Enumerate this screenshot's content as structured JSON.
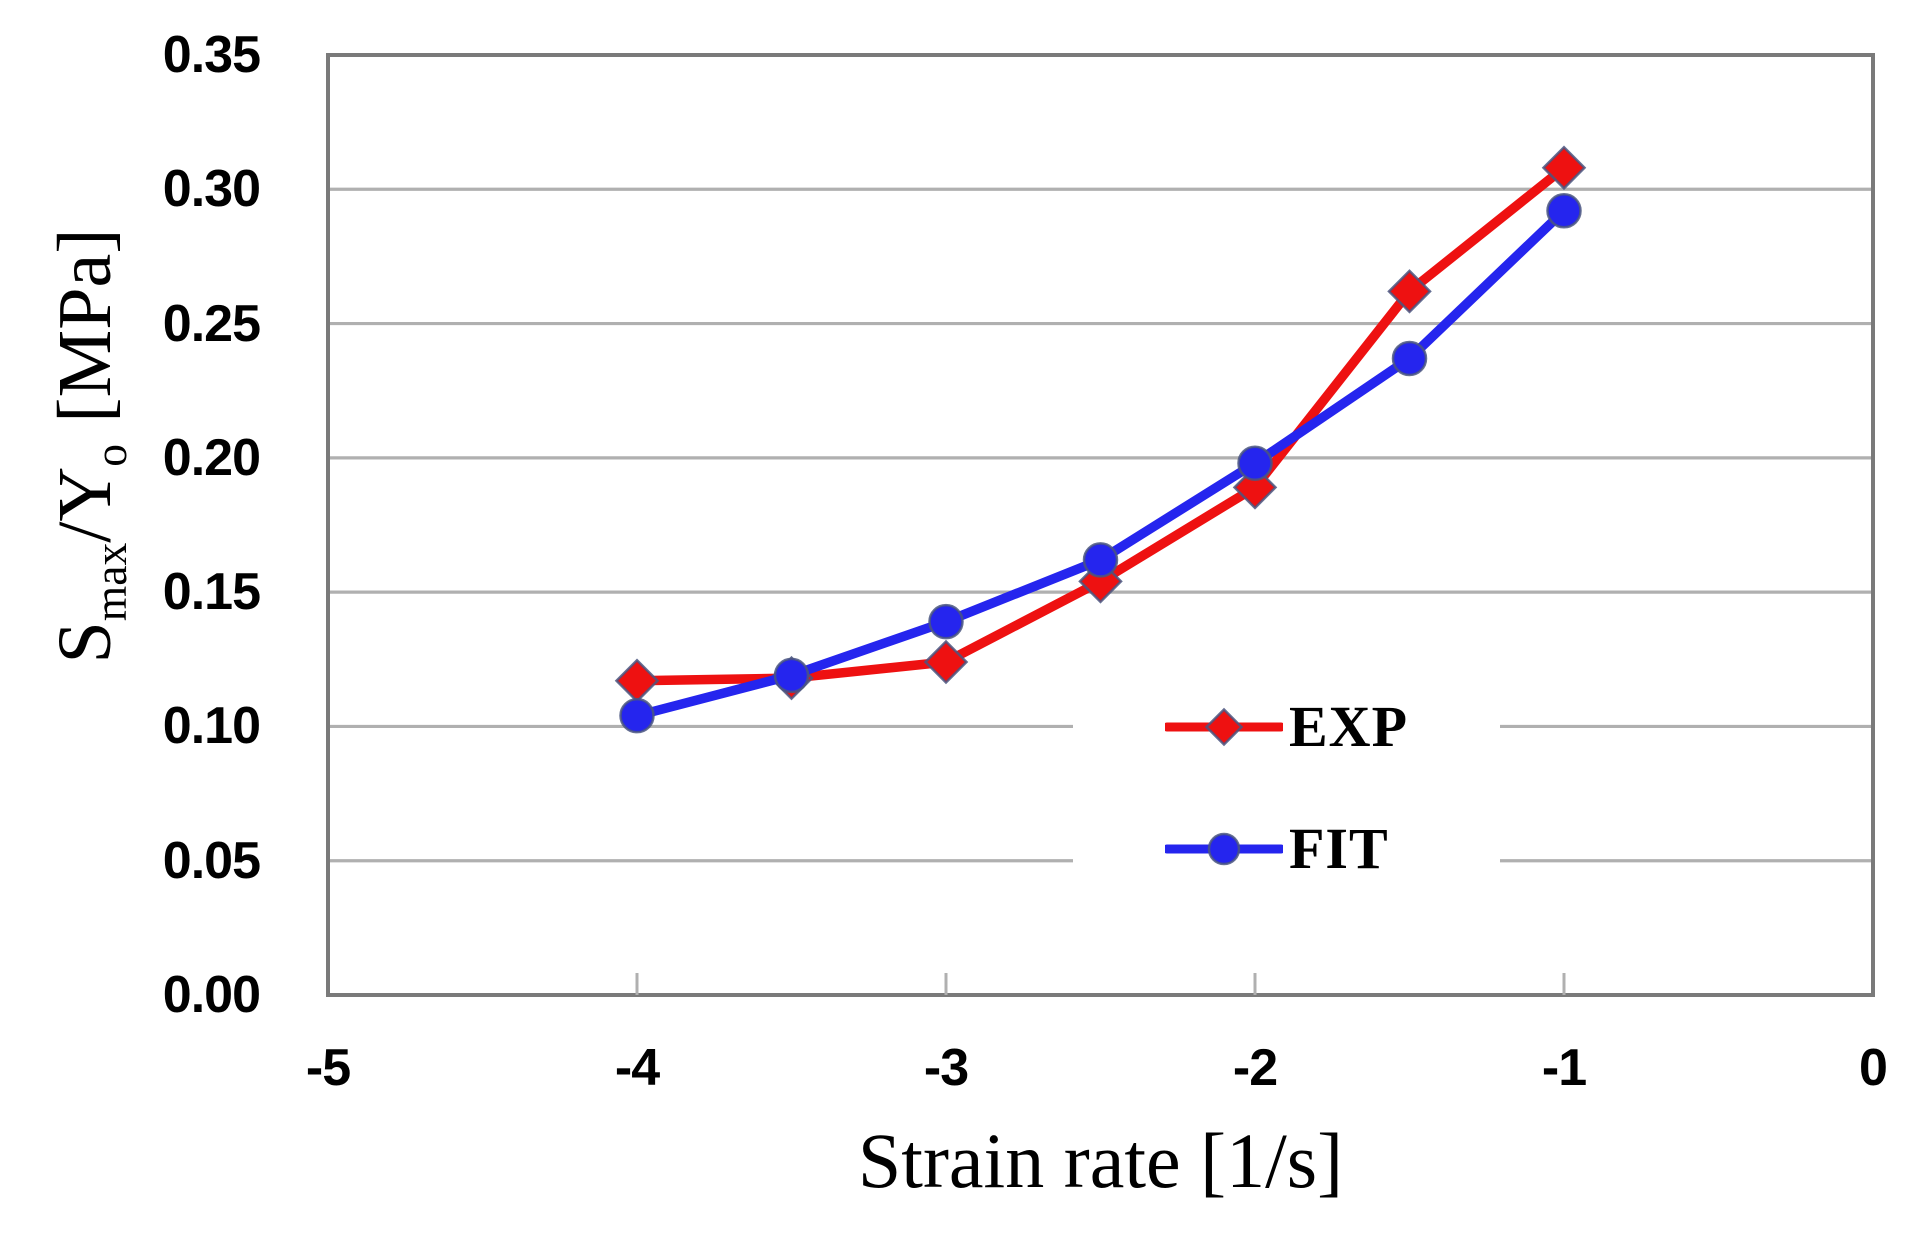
{
  "chart_data": {
    "type": "line",
    "title": "",
    "xlabel": "Strain rate [1/s]",
    "ylabel": "Smax/Yo [MPa]",
    "ylabel_parts": {
      "base1": "S",
      "sub1": "max",
      "base2": "/Y",
      "sub2": "o",
      "unit": "[MPa]"
    },
    "xlim": [
      -5,
      0
    ],
    "ylim": [
      0,
      0.35
    ],
    "grid": "horizontal",
    "legend_position": "inside-lower-right",
    "x_ticks": [
      {
        "value": -5,
        "label": "-5"
      },
      {
        "value": -4,
        "label": "-4"
      },
      {
        "value": -3,
        "label": "-3"
      },
      {
        "value": -2,
        "label": "-2"
      },
      {
        "value": -1,
        "label": "-1"
      },
      {
        "value": 0,
        "label": "0"
      }
    ],
    "y_ticks": [
      {
        "value": 0.0,
        "label": "0.00"
      },
      {
        "value": 0.05,
        "label": "0.05"
      },
      {
        "value": 0.1,
        "label": "0.10"
      },
      {
        "value": 0.15,
        "label": "0.15"
      },
      {
        "value": 0.2,
        "label": "0.20"
      },
      {
        "value": 0.25,
        "label": "0.25"
      },
      {
        "value": 0.3,
        "label": "0.30"
      },
      {
        "value": 0.35,
        "label": "0.35"
      }
    ],
    "x": [
      -4,
      -3.5,
      -3,
      -2.5,
      -2,
      -1.5,
      -1
    ],
    "series": [
      {
        "name": "EXP",
        "marker": "diamond",
        "color": "#EE1111",
        "values": [
          0.117,
          0.118,
          0.124,
          0.154,
          0.189,
          0.262,
          0.308
        ]
      },
      {
        "name": "FIT",
        "marker": "circle",
        "color": "#2525EE",
        "values": [
          0.104,
          0.119,
          0.139,
          0.162,
          0.198,
          0.237,
          0.292
        ]
      }
    ],
    "colors": {
      "marker_outline": "#4A5680",
      "gridline": "#B0B0B0",
      "frame": "#7A7A7A",
      "text": "#000000"
    }
  }
}
